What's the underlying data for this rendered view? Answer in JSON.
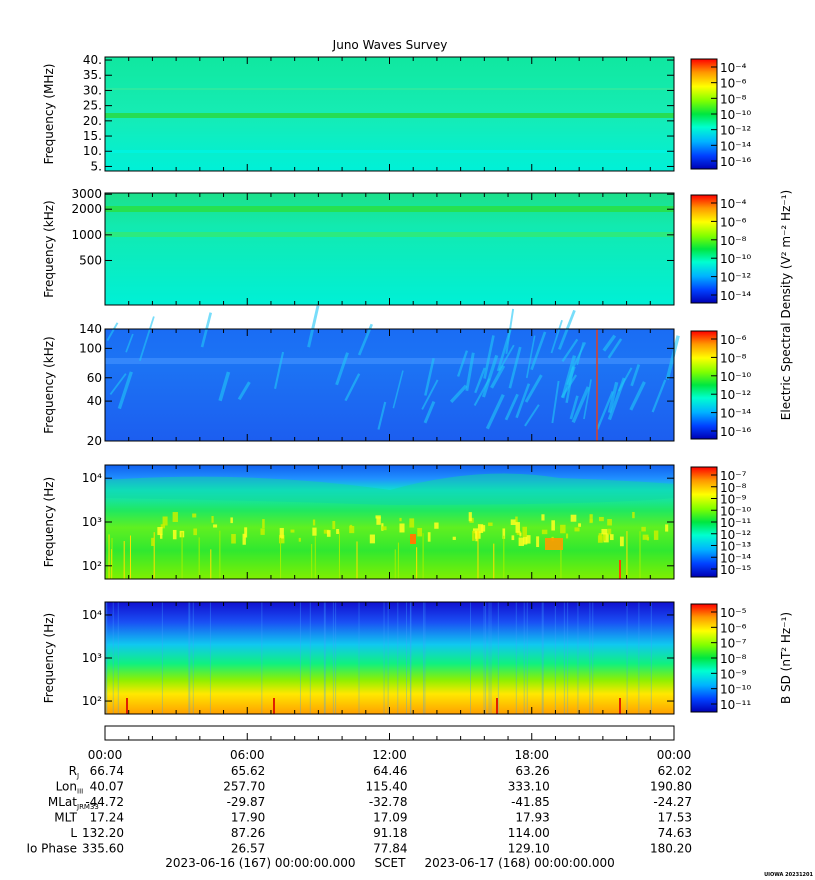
{
  "title": "Juno Waves Survey",
  "footer_scet": "2023-06-16 (167) 00:00:00.000     SCET     2023-06-17 (168) 00:00:00.000",
  "watermark": "UIOWA 20231201",
  "colors": {
    "spectrum": [
      "#0000c8",
      "#0040ff",
      "#00b4ff",
      "#00ffd0",
      "#00e640",
      "#80ff00",
      "#ffff00",
      "#ff9600",
      "#ff0000"
    ]
  },
  "chart_data": [
    {
      "type": "heatmap",
      "panel": "HF high",
      "ylabel": "Frequency (MHz)",
      "yscale": "linear",
      "ylim": [
        3.5,
        41
      ],
      "yticks": [
        {
          "value": 5,
          "label": "5."
        },
        {
          "value": 10,
          "label": "10."
        },
        {
          "value": 15,
          "label": "15."
        },
        {
          "value": 20,
          "label": "20."
        },
        {
          "value": 25,
          "label": "25."
        },
        {
          "value": 30,
          "label": "30."
        },
        {
          "value": 35,
          "label": "35."
        },
        {
          "value": 40,
          "label": "40."
        }
      ],
      "colorbar": {
        "exponents": [
          -4,
          -6,
          -8,
          -10,
          -12,
          -14,
          -16
        ],
        "label": ""
      }
    },
    {
      "type": "heatmap",
      "panel": "HF low",
      "ylabel": "Frequency (kHz)",
      "yscale": "log",
      "ylim": [
        150,
        3100
      ],
      "yticks": [
        {
          "value": 3000,
          "label": "3000"
        },
        {
          "value": 2000,
          "label": "2000"
        },
        {
          "value": 1000,
          "label": "1000"
        },
        {
          "value": 500,
          "label": "500"
        }
      ],
      "colorbar": {
        "exponents": [
          -4,
          -6,
          -8,
          -10,
          -12,
          -14
        ],
        "label": "Electric Spectral Density (V2 m-2 Hz-1)"
      }
    },
    {
      "type": "heatmap",
      "panel": "LF",
      "ylabel": "Frequency (kHz)",
      "yscale": "log",
      "ylim": [
        20,
        140
      ],
      "yticks": [
        {
          "value": 140,
          "label": "140"
        },
        {
          "value": 100,
          "label": "100"
        },
        {
          "value": 60,
          "label": "60"
        },
        {
          "value": 40,
          "label": "40"
        },
        {
          "value": 20,
          "label": "20"
        }
      ],
      "colorbar": {
        "exponents": [
          -6,
          -8,
          -10,
          -12,
          -14,
          -16
        ],
        "label": ""
      }
    },
    {
      "type": "heatmap",
      "panel": "LF-E",
      "ylabel": "Frequency (Hz)",
      "yscale": "log",
      "ylim": [
        50,
        20000
      ],
      "yticks": [
        {
          "value": 10000,
          "label": "10⁴"
        },
        {
          "value": 1000,
          "label": "10³"
        },
        {
          "value": 100,
          "label": "10²"
        }
      ],
      "colorbar": {
        "exponents": [
          -7,
          -8,
          -9,
          -10,
          -11,
          -12,
          -13,
          -14,
          -15
        ],
        "label": ""
      }
    },
    {
      "type": "heatmap",
      "panel": "LF-B",
      "ylabel": "Frequency (Hz)",
      "yscale": "log",
      "ylim": [
        50,
        20000
      ],
      "yticks": [
        {
          "value": 10000,
          "label": "10⁴"
        },
        {
          "value": 1000,
          "label": "10³"
        },
        {
          "value": 100,
          "label": "10²"
        }
      ],
      "colorbar": {
        "exponents": [
          -5,
          -6,
          -7,
          -8,
          -9,
          -10,
          -11
        ],
        "label": "B SD (nT2 Hz-1)"
      }
    }
  ],
  "time_axis": {
    "hours": [
      0,
      6,
      12,
      18,
      24
    ],
    "labels": [
      "00:00",
      "06:00",
      "12:00",
      "18:00",
      "00:00"
    ],
    "rows": [
      {
        "label": "R",
        "sub": "J",
        "values": [
          "66.74",
          "65.62",
          "64.46",
          "63.26",
          "62.02"
        ]
      },
      {
        "label": "Lon",
        "sub": "III",
        "values": [
          "40.07",
          "257.70",
          "115.40",
          "333.10",
          "190.80"
        ]
      },
      {
        "label": "MLat",
        "sub": "JRM33",
        "values": [
          "-44.72",
          "-29.87",
          "-32.78",
          "-41.85",
          "-24.27"
        ]
      },
      {
        "label": "MLT",
        "sub": "",
        "values": [
          "17.24",
          "17.90",
          "17.09",
          "17.93",
          "17.53"
        ]
      },
      {
        "label": "L",
        "sub": "",
        "values": [
          "132.20",
          "87.26",
          "91.18",
          "114.00",
          "74.63"
        ]
      },
      {
        "label": "Io Phase",
        "sub": "",
        "values": [
          "335.60",
          "26.57",
          "77.84",
          "129.10",
          "180.20"
        ]
      }
    ]
  }
}
